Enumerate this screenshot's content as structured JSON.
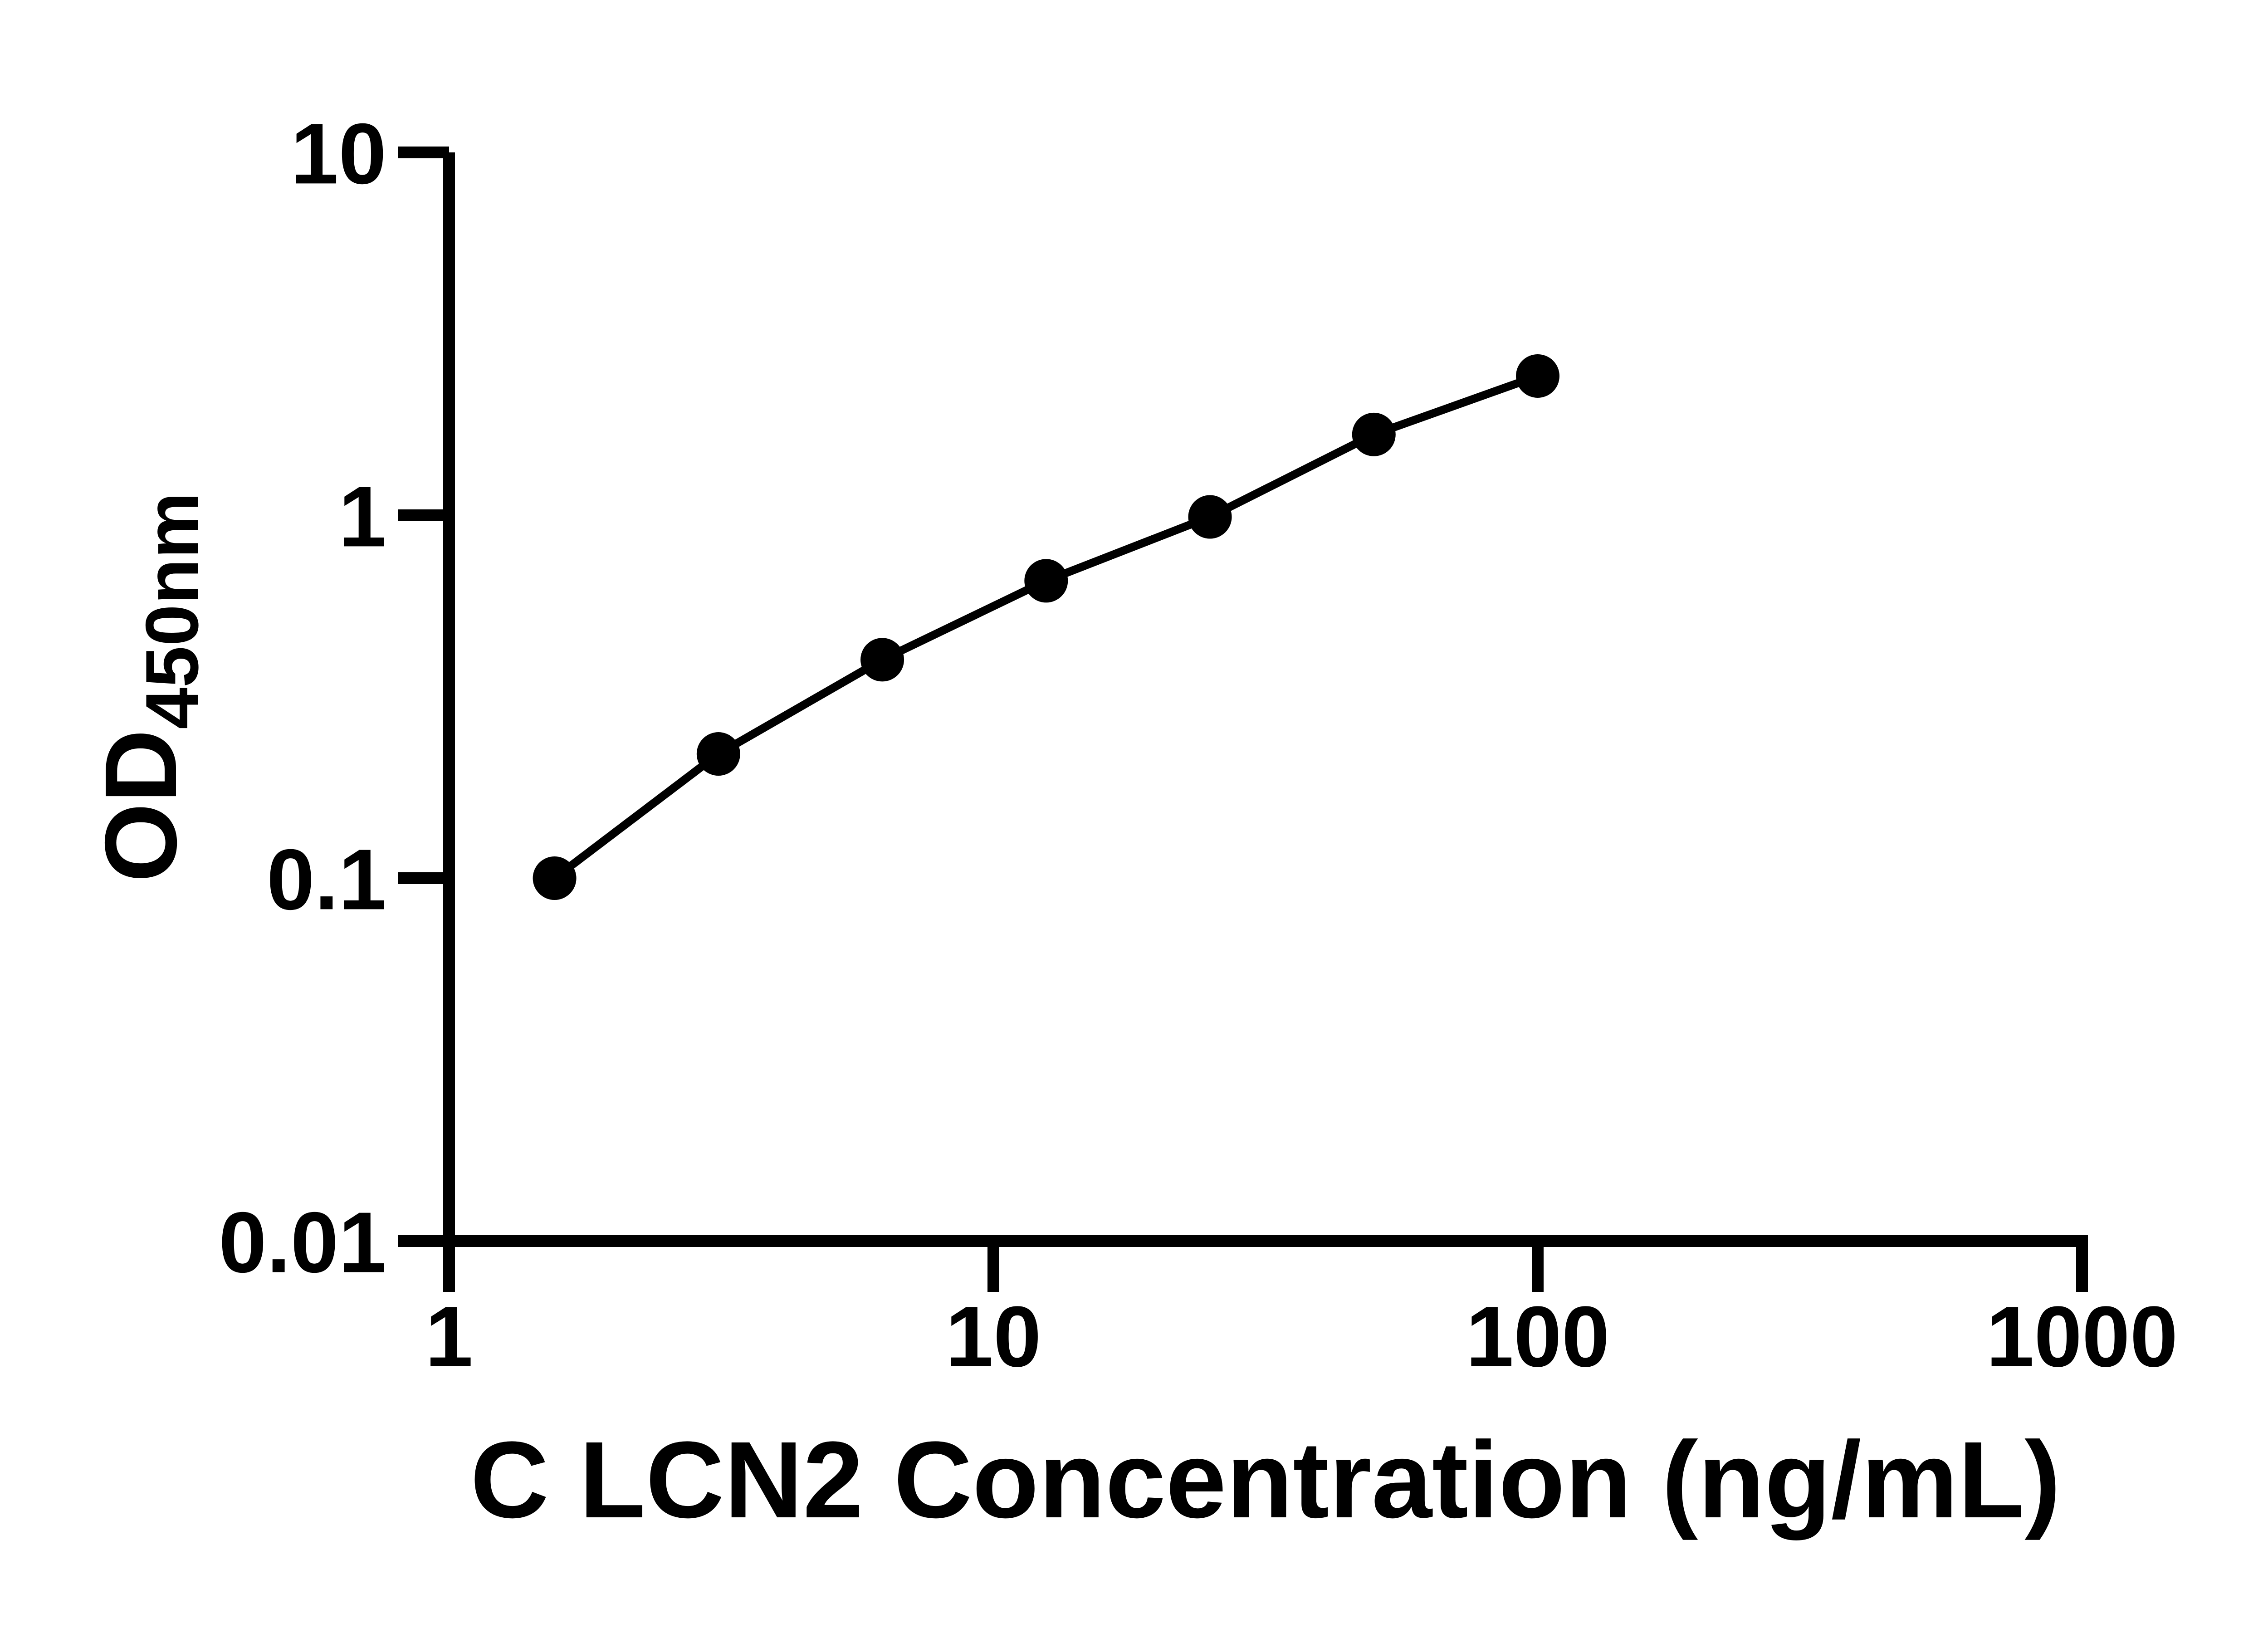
{
  "page": {
    "background_color": "#ffffff",
    "foreground_color": "#000000"
  },
  "chart_data": {
    "type": "line",
    "title": "",
    "xlabel": "C LCN2 Concentration (ng/mL)",
    "ylabel": "OD",
    "ylabel_sub": "450nm",
    "x_scale": "log10",
    "y_scale": "log10",
    "xlim": [
      1,
      1000
    ],
    "ylim": [
      0.01,
      10
    ],
    "x": [
      1.5625,
      3.125,
      6.25,
      12.5,
      25,
      50,
      100
    ],
    "y": [
      0.1,
      0.22,
      0.4,
      0.66,
      0.99,
      1.67,
      2.42
    ],
    "x_ticks": {
      "values": [
        1,
        10,
        100,
        1000
      ],
      "labels": [
        "1",
        "10",
        "100",
        "1000"
      ]
    },
    "y_ticks": {
      "values": [
        10,
        1,
        0.1,
        0.01
      ],
      "labels": [
        "10",
        "1",
        "0.1",
        "0.01"
      ]
    },
    "grid": false,
    "legend": false,
    "marker": {
      "shape": "circle",
      "color": "#000000"
    },
    "line": {
      "color": "#000000"
    }
  }
}
